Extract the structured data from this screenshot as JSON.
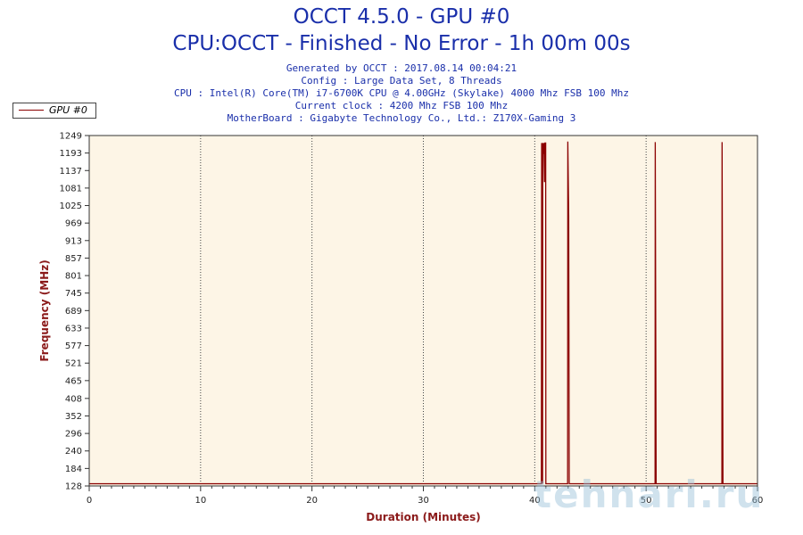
{
  "header": {
    "title": "OCCT 4.5.0 - GPU #0",
    "subtitle": "CPU:OCCT - Finished - No Error - 1h 00m 00s",
    "info_lines": [
      "Generated by OCCT : 2017.08.14 00:04:21",
      "Config : Large Data Set, 8 Threads",
      "CPU : Intel(R) Core(TM) i7-6700K CPU @ 4.00GHz (Skylake) 4000 Mhz FSB 100 Mhz",
      "Current clock : 4200 Mhz FSB 100 Mhz",
      "MotherBoard : Gigabyte Technology Co., Ltd.: Z170X-Gaming 3"
    ]
  },
  "watermark": "tehnari.ru",
  "colors": {
    "plot_background": "#fdf5e6",
    "series_line": "#8b0000",
    "axis_label": "#8b1a1a",
    "title": "#1a2faa"
  },
  "chart_data": {
    "type": "line",
    "title": "OCCT 4.5.0 - GPU #0",
    "xlabel": "Duration (Minutes)",
    "ylabel": "Frequency (MHz)",
    "xlim": [
      0,
      60
    ],
    "ylim": [
      128,
      1249
    ],
    "x_ticks": [
      0,
      10,
      20,
      30,
      40,
      50,
      60
    ],
    "y_ticks": [
      128,
      184,
      240,
      296,
      352,
      408,
      465,
      521,
      577,
      633,
      689,
      745,
      801,
      857,
      913,
      969,
      1025,
      1081,
      1137,
      1193,
      1249
    ],
    "grid": "vertical dotted",
    "legend_position": "top-left",
    "series": [
      {
        "name": "GPU #0",
        "points": [
          [
            0,
            135
          ],
          [
            40.6,
            135
          ],
          [
            40.62,
            1225
          ],
          [
            40.7,
            135
          ],
          [
            40.72,
            1225
          ],
          [
            40.78,
            1190
          ],
          [
            40.82,
            1225
          ],
          [
            40.88,
            1100
          ],
          [
            40.92,
            1225
          ],
          [
            40.98,
            1225
          ],
          [
            41.0,
            135
          ],
          [
            42.95,
            135
          ],
          [
            42.97,
            1230
          ],
          [
            43.05,
            990
          ],
          [
            43.1,
            135
          ],
          [
            50.8,
            135
          ],
          [
            50.82,
            1228
          ],
          [
            50.9,
            135
          ],
          [
            56.8,
            135
          ],
          [
            56.82,
            1228
          ],
          [
            56.9,
            135
          ],
          [
            60,
            135
          ]
        ]
      }
    ]
  }
}
